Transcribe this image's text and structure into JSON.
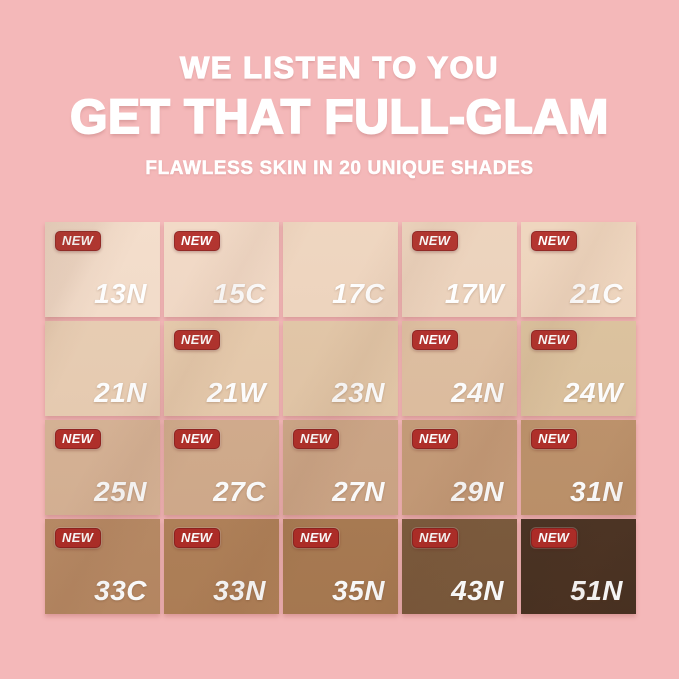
{
  "background_color": "#f4b8b9",
  "header": {
    "line1": "WE LISTEN TO YOU",
    "line2": "GET THAT FULL-GLAM",
    "line3": "FLAWLESS SKIN IN 20 UNIQUE SHADES",
    "text_color": "#ffffff"
  },
  "badge": {
    "label": "NEW",
    "bg_color": "#b02b26",
    "text_color": "#ffffff"
  },
  "shade_grid": {
    "rows": 4,
    "cols": 5,
    "total_shades": 20,
    "shades": [
      {
        "code": "13N",
        "color": "#f3dcc9",
        "new": true
      },
      {
        "code": "15C",
        "color": "#f1d8c4",
        "new": true
      },
      {
        "code": "17C",
        "color": "#eed4bd",
        "new": false
      },
      {
        "code": "17W",
        "color": "#ecd2bb",
        "new": true
      },
      {
        "code": "21C",
        "color": "#eed4bc",
        "new": true
      },
      {
        "code": "21N",
        "color": "#e8ccb1",
        "new": false
      },
      {
        "code": "21W",
        "color": "#e6c9aa",
        "new": true
      },
      {
        "code": "23N",
        "color": "#e2c5a5",
        "new": false
      },
      {
        "code": "24N",
        "color": "#debd9e",
        "new": true
      },
      {
        "code": "24W",
        "color": "#dcc19c",
        "new": true
      },
      {
        "code": "25N",
        "color": "#d7b294",
        "new": true
      },
      {
        "code": "27C",
        "color": "#d2ab8b",
        "new": true
      },
      {
        "code": "27N",
        "color": "#cda585",
        "new": true
      },
      {
        "code": "29N",
        "color": "#c59a76",
        "new": true
      },
      {
        "code": "31N",
        "color": "#bd9169",
        "new": true
      },
      {
        "code": "33C",
        "color": "#b98a64",
        "new": true
      },
      {
        "code": "33N",
        "color": "#b18158",
        "new": true
      },
      {
        "code": "35N",
        "color": "#aa7b52",
        "new": true
      },
      {
        "code": "43N",
        "color": "#7c5a3c",
        "new": true
      },
      {
        "code": "51N",
        "color": "#4a3222",
        "new": true
      }
    ]
  }
}
